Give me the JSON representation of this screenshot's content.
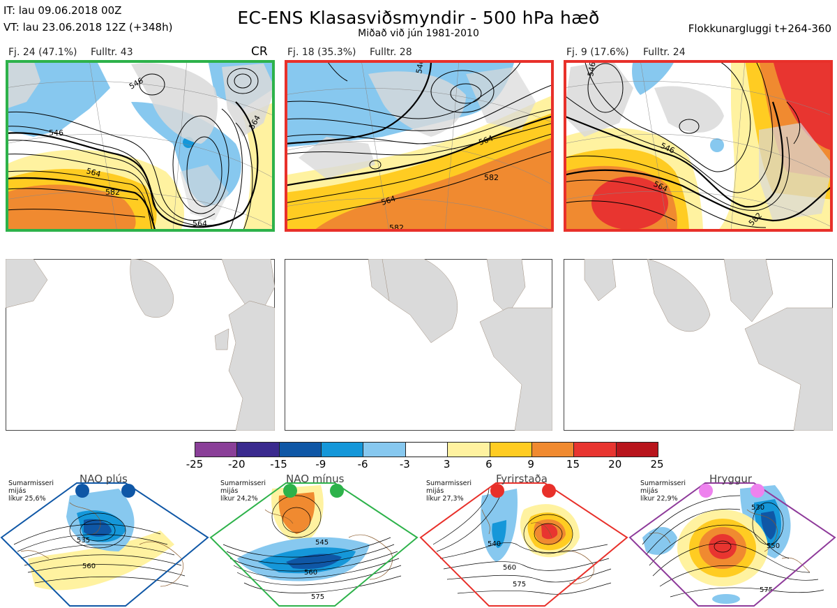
{
  "header": {
    "it": "IT: lau 09.06.2018 00Z",
    "vt": "VT: lau 23.06.2018 12Z  (+348h)",
    "title": "EC-ENS Klasasviðsmyndir - 500 hPa hæð",
    "subtitle": "Miðað við jún 1981-2010",
    "window": "Flokkunargluggi t+264-360"
  },
  "clusters": [
    {
      "fj": "Fj. 24 (47.1%)",
      "fulltr": "Fulltr. 43",
      "tag": "CR",
      "border_color": "#2db24a",
      "contour_labels": [
        "546",
        "546",
        "564",
        "582",
        "564",
        "564"
      ]
    },
    {
      "fj": "Fj. 18 (35.3%)",
      "fulltr": "Fulltr. 28",
      "tag": "",
      "border_color": "#e8302a",
      "contour_labels": [
        "546",
        "564",
        "582",
        "564",
        "582"
      ]
    },
    {
      "fj": "Fj. 9 (17.6%)",
      "fulltr": "Fulltr. 24",
      "tag": "",
      "border_color": "#e8302a",
      "contour_labels": [
        "546",
        "564",
        "546",
        "582"
      ]
    }
  ],
  "colorbar": {
    "ticks": [
      "-25",
      "-20",
      "-15",
      "-9",
      "-6",
      "-3",
      "3",
      "6",
      "9",
      "15",
      "20",
      "25"
    ],
    "colors": [
      "#8a3f98",
      "#3a2a8e",
      "#0f57a6",
      "#1597d9",
      "#87c8ef",
      "#ffffff",
      "#fff2a0",
      "#ffcc22",
      "#f08a30",
      "#e83530",
      "#b8151c"
    ]
  },
  "regimes": [
    {
      "name": "NAO plús",
      "season": "Sumarmisseri",
      "mean": "mijás",
      "prob": "líkur 25,6%",
      "color": "#0f57a6",
      "labels": [
        "535",
        "560"
      ]
    },
    {
      "name": "NAO mínus",
      "season": "Sumarmisseri",
      "mean": "mijás",
      "prob": "líkur 24,2%",
      "color": "#2db24a",
      "labels": [
        "545",
        "560",
        "575"
      ]
    },
    {
      "name": "Fyrirstaða",
      "season": "Sumarmisseri",
      "mean": "mijás",
      "prob": "líkur 27,3%",
      "color": "#e8302a",
      "labels": [
        "540",
        "560",
        "575"
      ]
    },
    {
      "name": "Hryggur",
      "season": "Sumarmisseri",
      "mean": "mijás",
      "prob": "líkur 22,9%",
      "color": "#8e3a9a",
      "labels": [
        "530",
        "550",
        "575"
      ]
    }
  ]
}
